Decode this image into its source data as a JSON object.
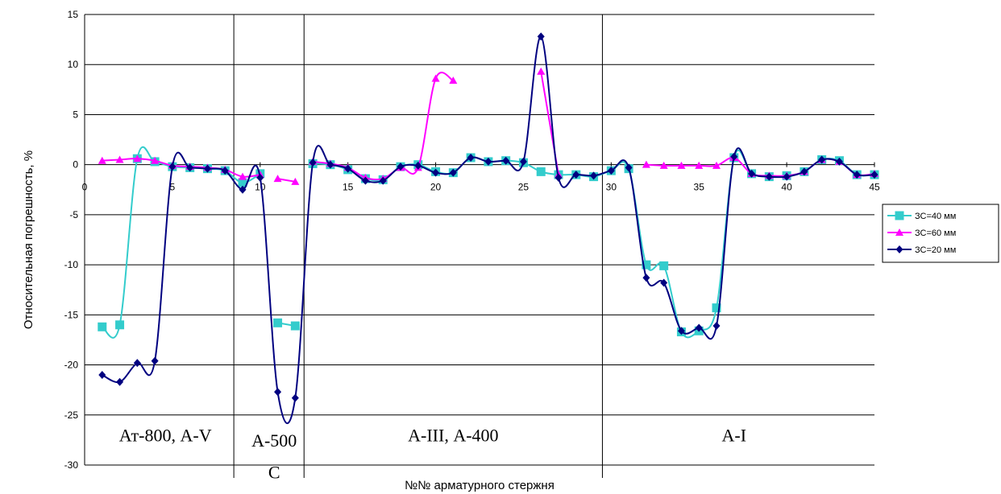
{
  "chart_data": {
    "type": "line",
    "title": "",
    "xlabel": "№№ арматурного стержня",
    "ylabel": "Относительная погрешность, %",
    "xlim": [
      0,
      45
    ],
    "ylim": [
      -30,
      15
    ],
    "x_ticks": [
      0,
      5,
      10,
      15,
      20,
      25,
      30,
      35,
      40,
      45
    ],
    "y_ticks": [
      15,
      10,
      5,
      0,
      -5,
      -10,
      -15,
      -20,
      -25,
      -30
    ],
    "grid": "horizontal",
    "legend_position": "right",
    "region_dividers": [
      8.5,
      12.5,
      29.5
    ],
    "regions": [
      {
        "label": "Ат-800, А-V",
        "x_center": 4.6,
        "y": -27
      },
      {
        "label": "А-500",
        "x_center": 10.8,
        "y": -27.5
      },
      {
        "label": "С",
        "x_center": 10.8,
        "y": -30.7
      },
      {
        "label": "А-III, А-400",
        "x_center": 21,
        "y": -27
      },
      {
        "label": "А-I",
        "x_center": 37,
        "y": -27
      }
    ],
    "series": [
      {
        "name": "ЗС=40 мм",
        "color": "#33CCCC",
        "marker": "square",
        "segments": [
          [
            [
              1,
              -16.2
            ],
            [
              2,
              -16
            ],
            [
              3,
              0.6
            ],
            [
              4,
              0.3
            ],
            [
              5,
              -0.2
            ],
            [
              6,
              -0.3
            ],
            [
              7,
              -0.4
            ],
            [
              8,
              -0.6
            ],
            [
              9,
              -1.8
            ],
            [
              10,
              -0.9
            ]
          ],
          [
            [
              11,
              -15.8
            ],
            [
              12,
              -16.1
            ]
          ],
          [
            [
              13,
              0.1
            ],
            [
              14,
              0
            ],
            [
              15,
              -0.5
            ],
            [
              16,
              -1.4
            ],
            [
              17,
              -1.5
            ],
            [
              18,
              -0.2
            ],
            [
              19,
              0
            ],
            [
              20,
              -0.7
            ],
            [
              21,
              -0.8
            ],
            [
              22,
              0.7
            ],
            [
              23,
              0.3
            ],
            [
              24,
              0.4
            ],
            [
              25,
              0.2
            ],
            [
              26,
              -0.7
            ],
            [
              27,
              -1
            ],
            [
              28,
              -1
            ],
            [
              29,
              -1.2
            ],
            [
              30,
              -0.6
            ],
            [
              31,
              -0.4
            ],
            [
              32,
              -10
            ],
            [
              33,
              -10.1
            ],
            [
              34,
              -16.7
            ],
            [
              35,
              -16.6
            ],
            [
              36,
              -14.3
            ],
            [
              37,
              0.7
            ],
            [
              38,
              -0.9
            ],
            [
              39,
              -1.2
            ],
            [
              40,
              -1.1
            ],
            [
              41,
              -0.7
            ],
            [
              42,
              0.5
            ],
            [
              43,
              0.4
            ],
            [
              44,
              -1
            ],
            [
              45,
              -1
            ]
          ]
        ]
      },
      {
        "name": "ЗС=60 мм",
        "color": "#FF00FF",
        "marker": "triangle",
        "segments": [
          [
            [
              1,
              0.4
            ],
            [
              2,
              0.5
            ],
            [
              3,
              0.6
            ],
            [
              4,
              0.4
            ],
            [
              5,
              -0.1
            ],
            [
              6,
              -0.2
            ],
            [
              7,
              -0.3
            ],
            [
              8,
              -0.5
            ],
            [
              9,
              -1.2
            ],
            [
              10,
              -1
            ]
          ],
          [
            [
              11,
              -1.4
            ],
            [
              12,
              -1.7
            ]
          ],
          [
            [
              13,
              0.3
            ],
            [
              14,
              0.1
            ],
            [
              15,
              -0.3
            ],
            [
              16,
              -1.3
            ],
            [
              17,
              -1.4
            ],
            [
              18,
              -0.3
            ],
            [
              19,
              -0.3
            ],
            [
              20,
              8.6
            ],
            [
              21,
              8.4
            ]
          ],
          [
            [
              26,
              9.3
            ],
            [
              27,
              -1
            ]
          ],
          [
            [
              32,
              0
            ],
            [
              33,
              -0.1
            ],
            [
              34,
              -0.1
            ],
            [
              35,
              -0.1
            ],
            [
              36,
              -0.1
            ],
            [
              37,
              0.7
            ],
            [
              38,
              -0.9
            ],
            [
              39,
              -1.1
            ],
            [
              40,
              -1.1
            ],
            [
              41,
              -0.7
            ],
            [
              42,
              0.5
            ],
            [
              43,
              0.3
            ],
            [
              44,
              -1
            ],
            [
              45,
              -0.9
            ]
          ]
        ]
      },
      {
        "name": "ЗС=20 мм",
        "color": "#000080",
        "marker": "diamond",
        "segments": [
          [
            [
              1,
              -21
            ],
            [
              2,
              -21.7
            ],
            [
              3,
              -19.8
            ],
            [
              4,
              -19.6
            ],
            [
              5,
              -0.2
            ],
            [
              6,
              -0.3
            ],
            [
              7,
              -0.4
            ],
            [
              8,
              -0.6
            ],
            [
              9,
              -2.5
            ],
            [
              10,
              -1.3
            ],
            [
              11,
              -22.7
            ],
            [
              12,
              -23.3
            ],
            [
              13,
              0.2
            ],
            [
              14,
              0
            ],
            [
              15,
              -0.4
            ],
            [
              16,
              -1.6
            ],
            [
              17,
              -1.6
            ],
            [
              18,
              -0.2
            ],
            [
              19,
              -0.1
            ],
            [
              20,
              -0.8
            ],
            [
              21,
              -0.8
            ],
            [
              22,
              0.7
            ],
            [
              23,
              0.3
            ],
            [
              24,
              0.4
            ],
            [
              25,
              0.3
            ],
            [
              26,
              12.8
            ],
            [
              27,
              -1.3
            ],
            [
              28,
              -1
            ],
            [
              29,
              -1.1
            ],
            [
              30,
              -0.6
            ],
            [
              31,
              -0.3
            ],
            [
              32,
              -11.3
            ],
            [
              33,
              -11.8
            ],
            [
              34,
              -16.6
            ],
            [
              35,
              -16.3
            ],
            [
              36,
              -16.1
            ],
            [
              37,
              0.8
            ],
            [
              38,
              -0.9
            ],
            [
              39,
              -1.2
            ],
            [
              40,
              -1.2
            ],
            [
              41,
              -0.7
            ],
            [
              42,
              0.5
            ],
            [
              43,
              0.3
            ],
            [
              44,
              -1
            ],
            [
              45,
              -1
            ]
          ]
        ]
      }
    ]
  }
}
